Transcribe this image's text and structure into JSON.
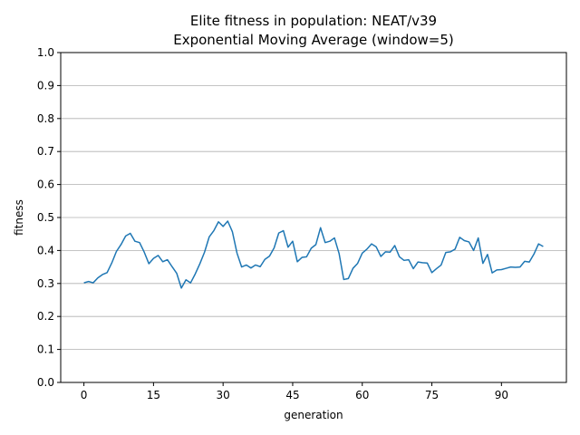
{
  "chart_data": {
    "type": "line",
    "title": "Elite fitness in population: NEAT/v39",
    "subtitle": "Exponential Moving Average (window=5)",
    "xlabel": "generation",
    "ylabel": "fitness",
    "xlim": [
      -5,
      104
    ],
    "ylim": [
      0.0,
      1.0
    ],
    "xticks": [
      0,
      15,
      30,
      45,
      60,
      75,
      90
    ],
    "xtick_labels": [
      "0",
      "15",
      "30",
      "45",
      "60",
      "75",
      "90"
    ],
    "yticks": [
      0.0,
      0.1,
      0.2,
      0.3,
      0.4,
      0.5,
      0.6,
      0.7,
      0.8,
      0.9,
      1.0
    ],
    "ytick_labels": [
      "0.0",
      "0.1",
      "0.2",
      "0.3",
      "0.4",
      "0.5",
      "0.6",
      "0.7",
      "0.8",
      "0.9",
      "1.0"
    ],
    "grid": "horizontal",
    "colors": {
      "line": "#1f77b4",
      "grid": "#b0b0b0",
      "axes": "#000000"
    },
    "series": [
      {
        "x": [
          0,
          1,
          2,
          3,
          4,
          5,
          6,
          7,
          8,
          9,
          10,
          11,
          12,
          13,
          14,
          15,
          16,
          17,
          18,
          19,
          20,
          21,
          22,
          23,
          24,
          25,
          26,
          27,
          28,
          29,
          30,
          31,
          32,
          33,
          34,
          35,
          36,
          37,
          38,
          39,
          40,
          41,
          42,
          43,
          44,
          45,
          46,
          47,
          48,
          49,
          50,
          51,
          52,
          53,
          54,
          55,
          56,
          57,
          58,
          59,
          60,
          61,
          62,
          63,
          64,
          65,
          66,
          67,
          68,
          69,
          70,
          71,
          72,
          73,
          74,
          75,
          76,
          77,
          78,
          79,
          80,
          81,
          82,
          83,
          84,
          85,
          86,
          87,
          88,
          89,
          90,
          91,
          92,
          93,
          94,
          95,
          96,
          97,
          98,
          99
        ],
        "values": [
          0.302,
          0.306,
          0.302,
          0.317,
          0.327,
          0.333,
          0.362,
          0.397,
          0.418,
          0.444,
          0.452,
          0.428,
          0.424,
          0.395,
          0.36,
          0.376,
          0.385,
          0.366,
          0.372,
          0.351,
          0.331,
          0.286,
          0.311,
          0.302,
          0.329,
          0.36,
          0.395,
          0.441,
          0.46,
          0.487,
          0.473,
          0.489,
          0.457,
          0.392,
          0.35,
          0.356,
          0.347,
          0.356,
          0.351,
          0.373,
          0.383,
          0.408,
          0.453,
          0.46,
          0.41,
          0.428,
          0.366,
          0.379,
          0.381,
          0.407,
          0.418,
          0.469,
          0.424,
          0.428,
          0.438,
          0.391,
          0.312,
          0.315,
          0.346,
          0.361,
          0.392,
          0.404,
          0.42,
          0.411,
          0.382,
          0.396,
          0.395,
          0.415,
          0.381,
          0.37,
          0.372,
          0.345,
          0.365,
          0.363,
          0.362,
          0.333,
          0.345,
          0.356,
          0.394,
          0.396,
          0.404,
          0.44,
          0.43,
          0.426,
          0.4,
          0.438,
          0.361,
          0.388,
          0.332,
          0.341,
          0.342,
          0.346,
          0.35,
          0.349,
          0.35,
          0.367,
          0.365,
          0.389,
          0.42,
          0.412
        ]
      }
    ]
  }
}
